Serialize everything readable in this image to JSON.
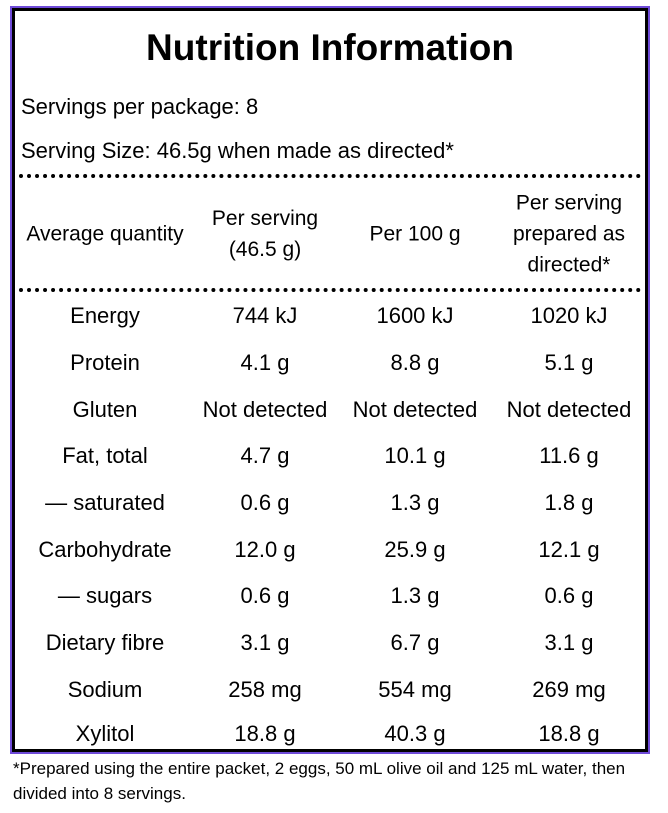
{
  "title": "Nutrition Information",
  "servings_per_package": "Servings per package: 8",
  "serving_size": "Serving Size: 46.5g when made as directed*",
  "columns": [
    "Average quantity",
    "Per serving (46.5 g)",
    "Per 100 g",
    "Per serving prepared as directed*"
  ],
  "rows": [
    {
      "label": "Energy",
      "per_serving": "744 kJ",
      "per_100g": "1600 kJ",
      "prepared": "1020 kJ"
    },
    {
      "label": "Protein",
      "per_serving": "4.1 g",
      "per_100g": "8.8 g",
      "prepared": "5.1 g"
    },
    {
      "label": "Gluten",
      "per_serving": "Not detected",
      "per_100g": "Not detected",
      "prepared": "Not detected"
    },
    {
      "label": "Fat, total",
      "per_serving": "4.7 g",
      "per_100g": "10.1 g",
      "prepared": "11.6 g"
    },
    {
      "label": "— saturated",
      "per_serving": "0.6 g",
      "per_100g": "1.3 g",
      "prepared": "1.8 g"
    },
    {
      "label": "Carbohydrate",
      "per_serving": "12.0 g",
      "per_100g": "25.9 g",
      "prepared": "12.1 g"
    },
    {
      "label": "— sugars",
      "per_serving": "0.6 g",
      "per_100g": "1.3 g",
      "prepared": "0.6 g"
    },
    {
      "label": "Dietary fibre",
      "per_serving": "3.1 g",
      "per_100g": "6.7 g",
      "prepared": "3.1 g"
    },
    {
      "label": "Sodium",
      "per_serving": "258 mg",
      "per_100g": "554 mg",
      "prepared": "269 mg"
    },
    {
      "label": "Xylitol",
      "per_serving": "18.8 g",
      "per_100g": "40.3 g",
      "prepared": "18.8 g"
    }
  ],
  "footnote": "*Prepared using the entire packet, 2 eggs, 50 mL olive oil and 125 mL water, then divided into 8 servings.",
  "colors": {
    "border": "#000000",
    "outline": "#6f4bd8",
    "text": "#000000",
    "background": "#ffffff"
  }
}
